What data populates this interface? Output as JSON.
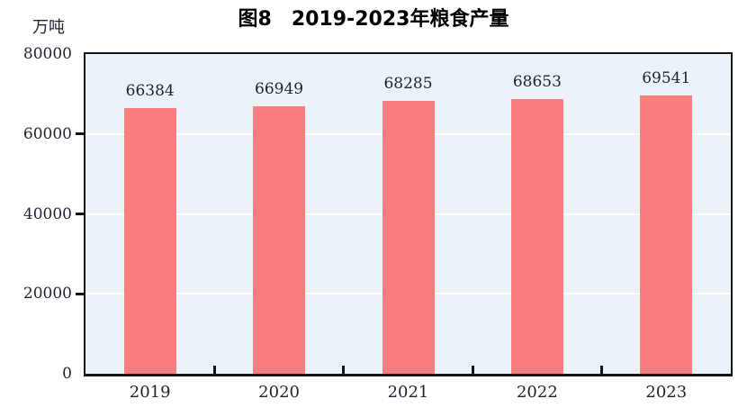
{
  "chart_data": {
    "type": "bar",
    "title": "图8　2019-2023年粮食产量",
    "unit_label": "万吨",
    "categories": [
      "2019",
      "2020",
      "2021",
      "2022",
      "2023"
    ],
    "values": [
      66384,
      66949,
      68285,
      68653,
      69541
    ],
    "data_labels": [
      "66384",
      "66949",
      "68285",
      "68653",
      "69541"
    ],
    "xlabel": "",
    "ylabel": "万吨",
    "ylim": [
      0,
      80000
    ],
    "yticks": [
      0,
      20000,
      40000,
      60000,
      80000
    ],
    "gridline_levels": [
      20000,
      40000,
      60000
    ],
    "grid": "horizontal",
    "legend": "none",
    "colors": {
      "bar_fill": "#FA7E7E",
      "plot_background": "#ECF3F8",
      "gridline": "#FFFFFF",
      "axis": "#141414",
      "text": "#1D2433",
      "title_text": "#000000"
    }
  }
}
